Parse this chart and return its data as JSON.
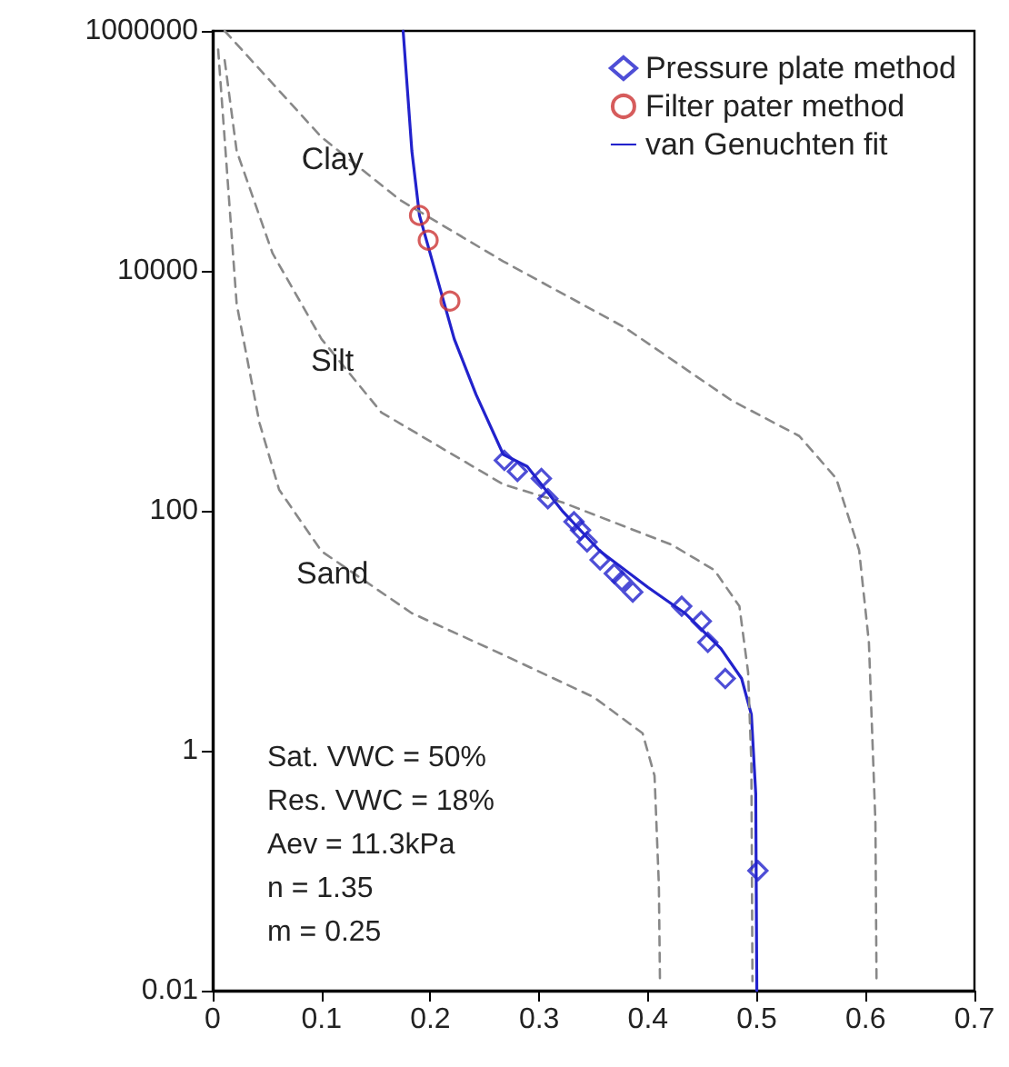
{
  "chart_data": {
    "type": "scatter",
    "xlim": [
      0,
      0.7
    ],
    "xticks": [
      0,
      0.1,
      0.2,
      0.3,
      0.4,
      0.5,
      0.6,
      0.7
    ],
    "ylim": [
      0.01,
      1000000
    ],
    "yticks": [
      0.01,
      1,
      100,
      10000,
      1000000
    ],
    "log": "y",
    "grid": false,
    "legend": "top right",
    "series": [
      {
        "name": "Pressure plate method",
        "marker": "diamond",
        "color": "#2222cc",
        "x": [
          0.268,
          0.28,
          0.302,
          0.308,
          0.332,
          0.338,
          0.344,
          0.356,
          0.369,
          0.376,
          0.386,
          0.431,
          0.449,
          0.455,
          0.471,
          0.501
        ],
        "values": [
          263,
          213,
          186,
          126,
          81,
          69,
          55,
          39,
          30,
          26,
          21,
          16,
          12,
          8,
          4,
          0.1
        ]
      },
      {
        "name": "Filter pater method",
        "marker": "circle",
        "color": "#cc3333",
        "x": [
          0.19,
          0.198,
          0.218
        ],
        "values": [
          29000,
          18000,
          5600
        ]
      },
      {
        "name": "van Genuchten fit",
        "type": "line",
        "marker": "none",
        "line_style": "solid",
        "color": "#2222cc",
        "x": [
          0.175,
          0.183,
          0.19,
          0.205,
          0.222,
          0.242,
          0.267,
          0.289,
          0.322,
          0.356,
          0.4,
          0.434,
          0.467,
          0.486,
          0.495,
          0.499,
          0.5
        ],
        "values": [
          1000000,
          100000,
          29000,
          9500,
          2700,
          930,
          295,
          234,
          98,
          46,
          23,
          14,
          7.1,
          4,
          2,
          0.44,
          0.01
        ]
      },
      {
        "name": "Clay",
        "type": "line",
        "marker": "none",
        "line_style": "dashed",
        "color": "#888888",
        "x": [
          0.011,
          0.1,
          0.172,
          0.267,
          0.378,
          0.477,
          0.539,
          0.573,
          0.594,
          0.603,
          0.609,
          0.61
        ],
        "values": [
          1000000,
          130000,
          39000,
          12000,
          3400,
          830,
          420,
          186,
          47,
          8,
          0.25,
          0.012
        ]
      },
      {
        "name": "Silt",
        "type": "line",
        "marker": "none",
        "line_style": "dashed",
        "color": "#888888",
        "x": [
          0.011,
          0.022,
          0.055,
          0.1,
          0.155,
          0.267,
          0.322,
          0.422,
          0.461,
          0.484,
          0.492,
          0.495,
          0.496
        ],
        "values": [
          570000,
          100000,
          14000,
          2700,
          660,
          166,
          117,
          52,
          32,
          16,
          4.5,
          0.78,
          0.012
        ]
      },
      {
        "name": "Sand",
        "type": "line",
        "marker": "none",
        "line_style": "dashed",
        "color": "#888888",
        "x": [
          0.005,
          0.022,
          0.043,
          0.061,
          0.1,
          0.183,
          0.267,
          0.35,
          0.395,
          0.406,
          0.41,
          0.411
        ],
        "values": [
          700000,
          5300,
          540,
          150,
          46,
          14,
          6.3,
          2.8,
          1.4,
          0.62,
          0.076,
          0.012
        ]
      }
    ],
    "annotations": [
      "Sat. VWC = 50%",
      "Res. VWC = 18%",
      "Aev = 11.3kPa",
      "n = 1.35",
      "m = 0.25"
    ]
  }
}
